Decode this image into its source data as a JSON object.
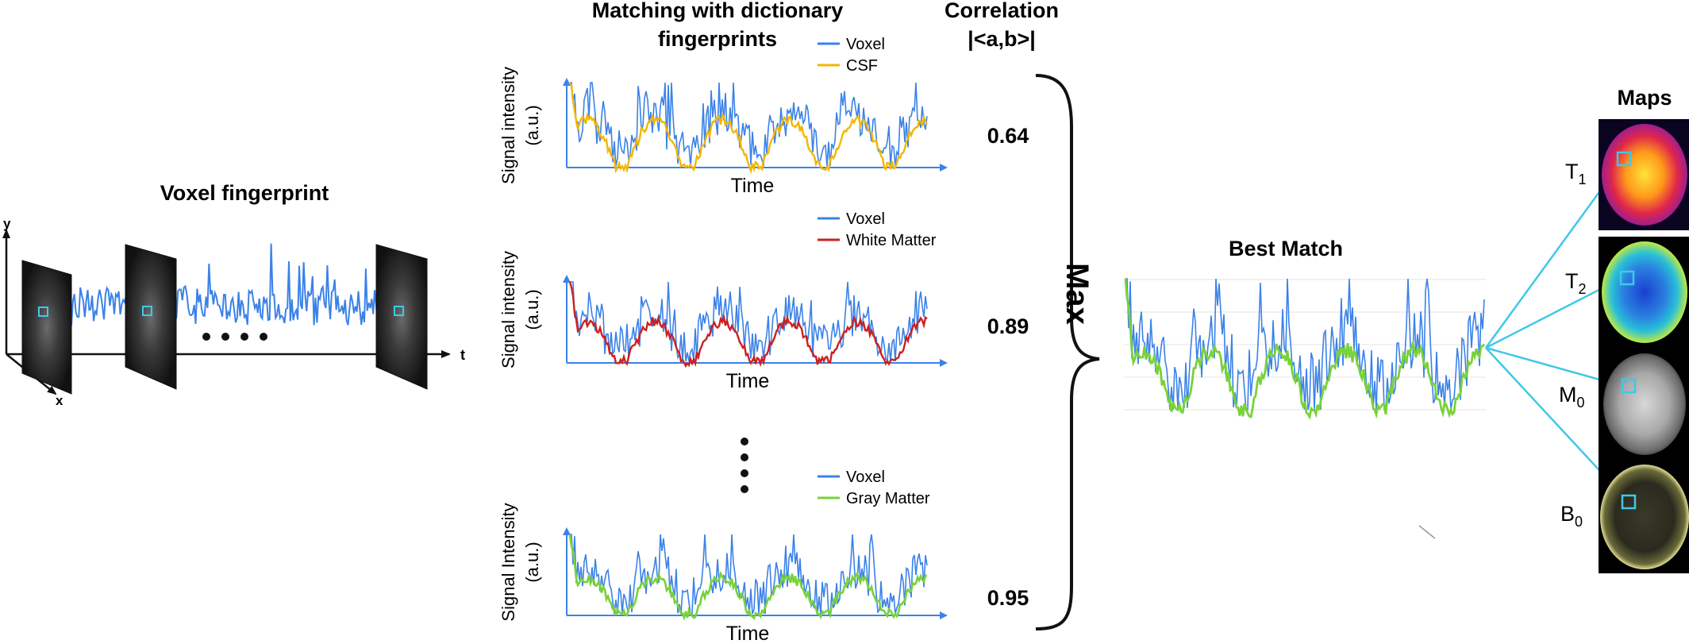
{
  "colors": {
    "voxel": "#3b82e8",
    "csf": "#f2b705",
    "white_matter": "#cc2020",
    "gray_matter": "#78d23a",
    "cyan": "#40c8e8",
    "axis": "#3b82e8",
    "text": "#111111"
  },
  "left": {
    "title": "Voxel fingerprint",
    "axis_y": "y",
    "axis_x": "x",
    "axis_t": "t"
  },
  "matching": {
    "title_line1": "Matching with dictionary",
    "title_line2": "fingerprints",
    "panels": [
      {
        "ylabel_line1": "Signal intensity",
        "ylabel_line2": "(a.u.)",
        "xlabel": "Time",
        "legend": [
          "Voxel",
          "CSF"
        ],
        "correlation": "0.64"
      },
      {
        "ylabel_line1": "Signal intensity",
        "ylabel_line2": "(a.u.)",
        "xlabel": "Time",
        "legend": [
          "Voxel",
          "White Matter"
        ],
        "correlation": "0.89"
      },
      {
        "ylabel_line1": "Signal Intensity",
        "ylabel_line2": "(a.u.)",
        "xlabel": "Time",
        "legend": [
          "Voxel",
          "Gray Matter"
        ],
        "correlation": "0.95"
      }
    ]
  },
  "correlation_title_line1": "Correlation",
  "correlation_title_line2": "|<a,b>|",
  "max_label": "Max",
  "best_match_title": "Best Match",
  "maps": {
    "title": "Maps",
    "items": [
      {
        "base": "T",
        "sub": "1"
      },
      {
        "base": "T",
        "sub": "2"
      },
      {
        "base": "M",
        "sub": "0"
      },
      {
        "base": "B",
        "sub": "0"
      }
    ]
  }
}
